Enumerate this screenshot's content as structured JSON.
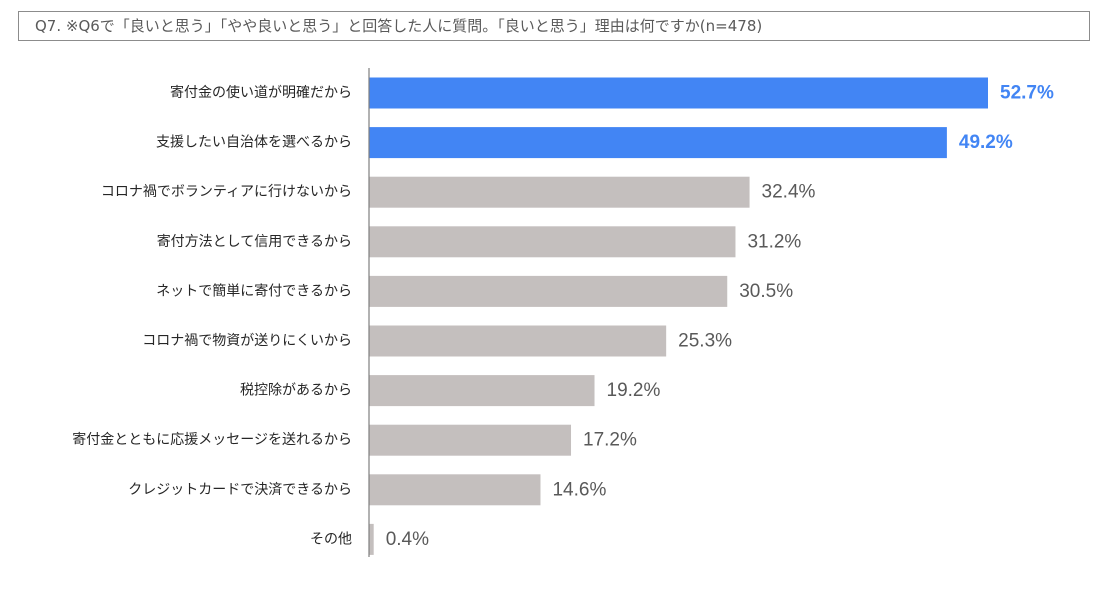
{
  "title": "Q7. ※Q6で「良いと思う」「やや良いと思う」と回答した人に質問。「良いと思う」理由は何ですか(n=478)",
  "colors": {
    "highlight": "#4285f4",
    "default": "#c4bfbe",
    "axis": "#7f7f7f",
    "label": "#262626",
    "value": "#595959"
  },
  "chart_data": {
    "type": "bar",
    "orientation": "horizontal",
    "title": "Q7. ※Q6で「良いと思う」「やや良いと思う」と回答した人に質問。「良いと思う」理由は何ですか(n=478)",
    "xlabel": "",
    "ylabel": "",
    "xlim": [
      0,
      52.7
    ],
    "grid": false,
    "legend": "none",
    "categories": [
      "寄付金の使い道が明確だから",
      "支援したい自治体を選べるから",
      "コロナ禍でボランティアに行けないから",
      "寄付方法として信用できるから",
      "ネットで簡単に寄付できるから",
      "コロナ禍で物資が送りにくいから",
      "税控除があるから",
      "寄付金とともに応援メッセージを送れるから",
      "クレジットカードで決済できるから",
      "その他"
    ],
    "values": [
      52.7,
      49.2,
      32.4,
      31.2,
      30.5,
      25.3,
      19.2,
      17.2,
      14.6,
      0.4
    ],
    "value_labels": [
      "52.7%",
      "49.2%",
      "32.4%",
      "31.2%",
      "30.5%",
      "25.3%",
      "19.2%",
      "17.2%",
      "14.6%",
      "0.4%"
    ],
    "highlighted": [
      true,
      true,
      false,
      false,
      false,
      false,
      false,
      false,
      false,
      false
    ]
  }
}
